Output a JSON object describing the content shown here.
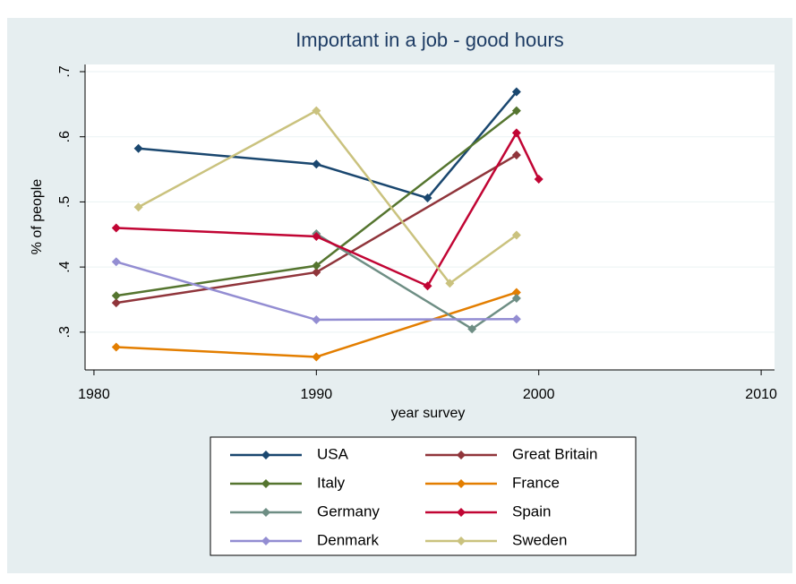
{
  "chart_data": {
    "type": "line",
    "title": "Important  in a job - good hours",
    "xlabel": "year survey",
    "ylabel": "% of people",
    "xlim": [
      1979.6,
      2010.6
    ],
    "xticks": [
      1980,
      1990,
      2000,
      2010
    ],
    "ylim": [
      0.242,
      0.711
    ],
    "yticks": [
      {
        "value": 0.3,
        "label": ".3"
      },
      {
        "value": 0.4,
        "label": ".4"
      },
      {
        "value": 0.5,
        "label": ".5"
      },
      {
        "value": 0.6,
        "label": ".6"
      },
      {
        "value": 0.7,
        "label": ".7"
      }
    ],
    "grid": true,
    "series": [
      {
        "name": "USA",
        "color": "#1a476f",
        "x": [
          1982,
          1990,
          1995,
          1999
        ],
        "values": [
          0.582,
          0.558,
          0.506,
          0.669
        ]
      },
      {
        "name": "Great Britain",
        "color": "#90353b",
        "x": [
          1981,
          1990,
          1999
        ],
        "values": [
          0.345,
          0.392,
          0.572
        ]
      },
      {
        "name": "Italy",
        "color": "#55752f",
        "x": [
          1981,
          1990,
          1999
        ],
        "values": [
          0.356,
          0.402,
          0.64
        ]
      },
      {
        "name": "France",
        "color": "#e37e00",
        "x": [
          1981,
          1990,
          1999
        ],
        "values": [
          0.277,
          0.262,
          0.361
        ]
      },
      {
        "name": "Germany",
        "color": "#6e8e84",
        "x": [
          1990,
          1997,
          1999
        ],
        "values": [
          0.451,
          0.305,
          0.352
        ]
      },
      {
        "name": "Spain",
        "color": "#c10534",
        "x": [
          1981,
          1990,
          1995,
          1999,
          2000
        ],
        "values": [
          0.46,
          0.447,
          0.371,
          0.606,
          0.535
        ]
      },
      {
        "name": "Denmark",
        "color": "#938dd2",
        "x": [
          1981,
          1990,
          1999
        ],
        "values": [
          0.408,
          0.319,
          0.32
        ]
      },
      {
        "name": "Sweden",
        "color": "#cac27e",
        "x": [
          1982,
          1990,
          1996,
          1999
        ],
        "values": [
          0.492,
          0.64,
          0.375,
          0.449
        ]
      }
    ]
  }
}
